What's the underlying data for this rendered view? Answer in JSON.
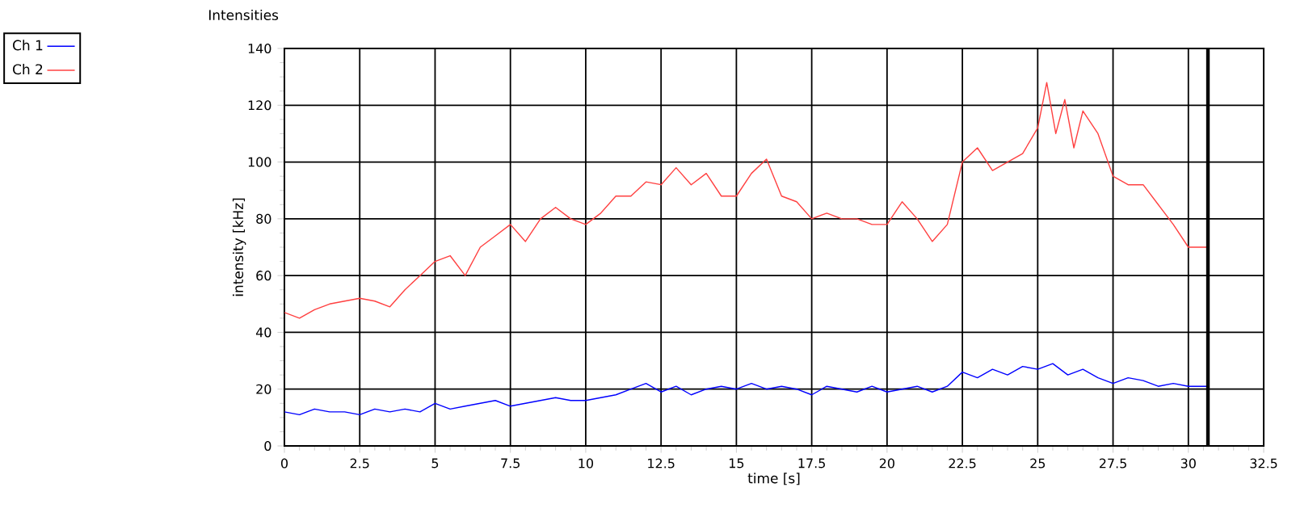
{
  "chart_data": {
    "type": "line",
    "title": "Intensities",
    "xlabel": "time [s]",
    "ylabel": "intensity [kHz]",
    "xlim": [
      0,
      32.5
    ],
    "xticks": [
      0,
      2.5,
      5,
      7.5,
      10,
      12.5,
      15,
      17.5,
      20,
      22.5,
      25,
      27.5,
      30,
      32.5
    ],
    "ylim": [
      0,
      140
    ],
    "yticks": [
      0,
      20,
      40,
      60,
      80,
      100,
      120,
      140
    ],
    "grid": true,
    "legend": "top left",
    "marker": "none",
    "line_style": "solid",
    "ref_lines": [
      {
        "axis": "x",
        "value": 30.65,
        "color": "#000000"
      }
    ],
    "series": [
      {
        "name": "Ch 1",
        "color": "#0000ff",
        "x": [
          0,
          0.5,
          1,
          1.5,
          2,
          2.5,
          3,
          3.5,
          4,
          4.5,
          5,
          5.5,
          6,
          6.5,
          7,
          7.5,
          8,
          8.5,
          9,
          9.5,
          10,
          10.5,
          11,
          11.5,
          12,
          12.5,
          13,
          13.5,
          14,
          14.5,
          15,
          15.5,
          16,
          16.5,
          17,
          17.5,
          18,
          18.5,
          19,
          19.5,
          20,
          20.5,
          21,
          21.5,
          22,
          22.5,
          23,
          23.5,
          24,
          24.5,
          25,
          25.5,
          26,
          26.5,
          27,
          27.5,
          28,
          28.5,
          29,
          29.5,
          30,
          30.6
        ],
        "values": [
          12,
          11,
          13,
          12,
          12,
          11,
          13,
          12,
          13,
          12,
          15,
          13,
          14,
          15,
          16,
          14,
          15,
          16,
          17,
          16,
          16,
          17,
          18,
          20,
          22,
          19,
          21,
          18,
          20,
          21,
          20,
          22,
          20,
          21,
          20,
          18,
          21,
          20,
          19,
          21,
          19,
          20,
          21,
          19,
          21,
          26,
          24,
          27,
          25,
          28,
          27,
          29,
          25,
          27,
          24,
          22,
          24,
          23,
          21,
          22,
          21,
          21
        ]
      },
      {
        "name": "Ch 2",
        "color": "#ff4040",
        "x": [
          0,
          0.5,
          1,
          1.5,
          2,
          2.5,
          3,
          3.5,
          4,
          4.5,
          5,
          5.5,
          6,
          6.5,
          7,
          7.5,
          8,
          8.5,
          9,
          9.5,
          10,
          10.5,
          11,
          11.5,
          12,
          12.5,
          13,
          13.5,
          14,
          14.5,
          15,
          15.5,
          16,
          16.5,
          17,
          17.5,
          18,
          18.5,
          19,
          19.5,
          20,
          20.5,
          21,
          21.5,
          22,
          22.5,
          23,
          23.5,
          24,
          24.5,
          25,
          25.3,
          25.6,
          25.9,
          26.2,
          26.5,
          27,
          27.5,
          28,
          28.5,
          29,
          29.5,
          30,
          30.6
        ],
        "values": [
          47,
          45,
          48,
          50,
          51,
          52,
          51,
          49,
          55,
          60,
          65,
          67,
          60,
          70,
          74,
          78,
          72,
          80,
          84,
          80,
          78,
          82,
          88,
          88,
          93,
          92,
          98,
          92,
          96,
          88,
          88,
          96,
          101,
          88,
          86,
          80,
          82,
          80,
          80,
          78,
          78,
          86,
          80,
          72,
          78,
          100,
          105,
          97,
          100,
          103,
          112,
          128,
          110,
          122,
          105,
          118,
          110,
          95,
          92,
          92,
          85,
          78,
          70,
          70
        ]
      }
    ]
  }
}
